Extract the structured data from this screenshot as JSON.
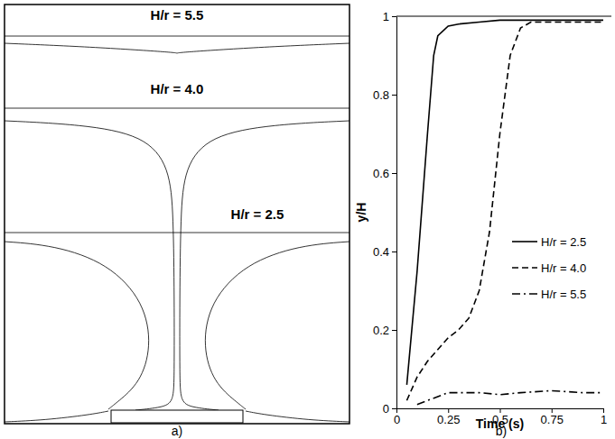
{
  "chart_data": [
    {
      "type": "diagram",
      "panel_label": "a)",
      "annotations": [
        "H/r = 5.5",
        "H/r = 4.0",
        "H/r = 2.5"
      ]
    },
    {
      "type": "line",
      "panel_label": "b)",
      "x_label": "Time (s)",
      "y_label": "y/H",
      "xlim": [
        0,
        1
      ],
      "xticks": [
        0,
        0.25,
        0.5,
        0.75,
        1
      ],
      "ylim": [
        0,
        1
      ],
      "yticks": [
        0,
        0.2,
        0.4,
        0.6,
        0.8,
        1
      ],
      "grid": false,
      "legend": "right",
      "series": [
        {
          "name": "H/r = 2.5",
          "color": "#000000",
          "line_style": "solid",
          "x": [
            0.05,
            0.1,
            0.15,
            0.18,
            0.2,
            0.25,
            0.3,
            0.4,
            0.5,
            0.75,
            1.0
          ],
          "values": [
            0.06,
            0.35,
            0.7,
            0.9,
            0.95,
            0.975,
            0.98,
            0.985,
            0.99,
            0.99,
            0.99
          ]
        },
        {
          "name": "H/r = 4.0",
          "color": "#000000",
          "line_style": "dashed",
          "x": [
            0.05,
            0.1,
            0.15,
            0.2,
            0.25,
            0.3,
            0.35,
            0.4,
            0.45,
            0.5,
            0.55,
            0.6,
            0.65,
            0.75,
            1.0
          ],
          "values": [
            0.02,
            0.08,
            0.12,
            0.15,
            0.18,
            0.2,
            0.23,
            0.3,
            0.45,
            0.7,
            0.9,
            0.97,
            0.985,
            0.985,
            0.985
          ]
        },
        {
          "name": "H/r = 5.5",
          "color": "#000000",
          "line_style": "dashdot",
          "x": [
            0.1,
            0.15,
            0.2,
            0.25,
            0.3,
            0.4,
            0.5,
            0.6,
            0.75,
            0.9,
            1.0
          ],
          "values": [
            0.01,
            0.02,
            0.03,
            0.04,
            0.04,
            0.04,
            0.035,
            0.04,
            0.045,
            0.04,
            0.04
          ]
        }
      ]
    }
  ]
}
